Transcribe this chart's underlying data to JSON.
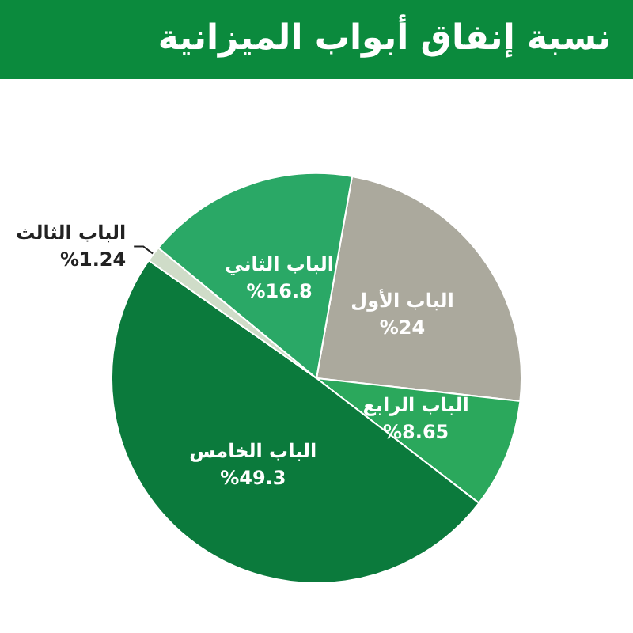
{
  "chart_data": {
    "type": "pie",
    "title": "نسبة إنفاق أبواب الميزانية",
    "categories": [
      "الباب الأول",
      "الباب الرابع",
      "الباب الخامس",
      "الباب الثالث",
      "الباب الثاني"
    ],
    "values": [
      24,
      8.65,
      49.3,
      1.24,
      16.8
    ],
    "colors": [
      "#aba99d",
      "#2ba85c",
      "#0b7a3c",
      "#cfdcc8",
      "#2aa866"
    ],
    "value_labels": [
      "%24",
      "%8.65",
      "%49.3",
      "%1.24",
      "%16.8"
    ],
    "legend": false
  }
}
